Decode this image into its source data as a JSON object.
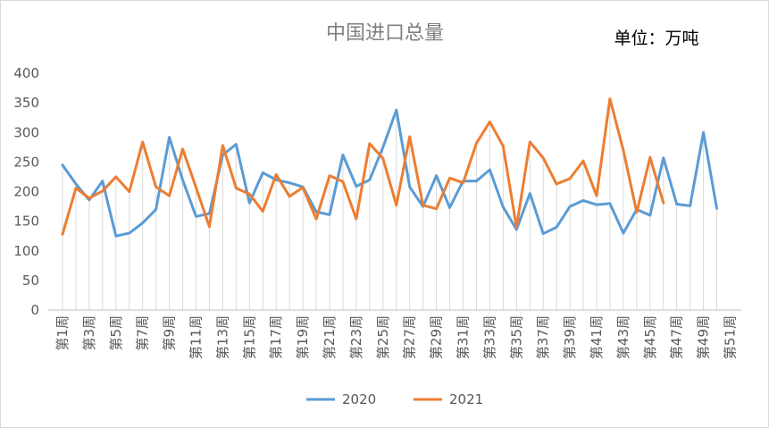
{
  "chart_data": {
    "type": "line",
    "title": "中国进口总量",
    "unit_label": "单位：万吨",
    "xlabel": "",
    "ylabel": "",
    "ylim": [
      0,
      400
    ],
    "yticks": [
      0,
      50,
      100,
      150,
      200,
      250,
      300,
      350,
      400
    ],
    "categories": [
      "第1周",
      "第2周",
      "第3周",
      "第4周",
      "第5周",
      "第6周",
      "第7周",
      "第8周",
      "第9周",
      "第10周",
      "第11周",
      "第12周",
      "第13周",
      "第14周",
      "第15周",
      "第16周",
      "第17周",
      "第18周",
      "第19周",
      "第20周",
      "第21周",
      "第22周",
      "第23周",
      "第24周",
      "第25周",
      "第26周",
      "第27周",
      "第28周",
      "第29周",
      "第30周",
      "第31周",
      "第32周",
      "第33周",
      "第34周",
      "第35周",
      "第36周",
      "第37周",
      "第38周",
      "第39周",
      "第40周",
      "第41周",
      "第42周",
      "第43周",
      "第44周",
      "第45周",
      "第46周",
      "第47周",
      "第48周",
      "第49周",
      "第50周",
      "第51周"
    ],
    "tick_labels": [
      "第1周",
      "第3周",
      "第5周",
      "第7周",
      "第9周",
      "第11周",
      "第13周",
      "第15周",
      "第17周",
      "第19周",
      "第21周",
      "第23周",
      "第25周",
      "第27周",
      "第29周",
      "第31周",
      "第33周",
      "第35周",
      "第37周",
      "第39周",
      "第41周",
      "第43周",
      "第45周",
      "第47周",
      "第49周",
      "第51周"
    ],
    "grid": "vertical-drop-lines",
    "legend_position": "bottom",
    "series": [
      {
        "name": "2020",
        "color": "#5b9bd5",
        "values": [
          245,
          213,
          186,
          218,
          125,
          130,
          147,
          170,
          292,
          220,
          158,
          163,
          262,
          280,
          181,
          232,
          220,
          215,
          208,
          166,
          161,
          262,
          209,
          220,
          275,
          338,
          208,
          175,
          227,
          173,
          218,
          218,
          237,
          174,
          136,
          197,
          129,
          140,
          175,
          185,
          178,
          180,
          130,
          170,
          160,
          257,
          179,
          176,
          300,
          172,
          null
        ]
      },
      {
        "name": "2021",
        "color": "#ed7d31",
        "values": [
          128,
          206,
          189,
          201,
          225,
          200,
          284,
          208,
          193,
          272,
          207,
          141,
          278,
          206,
          196,
          167,
          229,
          192,
          207,
          154,
          227,
          217,
          154,
          281,
          256,
          177,
          293,
          177,
          171,
          223,
          215,
          282,
          318,
          277,
          140,
          284,
          257,
          213,
          222,
          252,
          193,
          357,
          270,
          165,
          258,
          181,
          null,
          null,
          null,
          null,
          null
        ]
      }
    ]
  }
}
